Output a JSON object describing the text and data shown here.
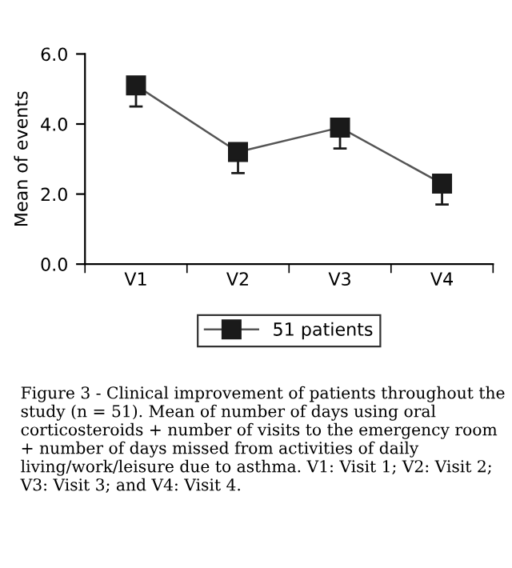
{
  "chart_data": {
    "type": "line",
    "ylabel": "Mean of events",
    "categories": [
      "V1",
      "V2",
      "V3",
      "V4"
    ],
    "series": [
      {
        "name": "51 patients",
        "color": "#1a1a1a",
        "values": [
          5.1,
          3.2,
          3.9,
          2.3
        ],
        "errors": [
          [
            4.5,
            5.1
          ],
          [
            2.6,
            3.2
          ],
          [
            3.3,
            3.9
          ],
          [
            1.7,
            2.3
          ]
        ]
      }
    ],
    "ylim": [
      0,
      6
    ],
    "yticks": [
      {
        "value": 0,
        "label": "0.0"
      },
      {
        "value": 2,
        "label": "2.0"
      },
      {
        "value": 4,
        "label": "4.0"
      },
      {
        "value": 6,
        "label": "6.0"
      }
    ],
    "marker": "square",
    "line_style": "solid",
    "grid": false,
    "legend": "bottom",
    "annotations": [
      "Figure 3 - Clinical improvement of patients throughout the study (n = 51). Mean of number of days using oral corticosteroids + number of visits to the emergency room + number of days missed from activities of daily living/work/leisure due to asthma. V1: Visit 1; V2: Visit 2; V3: Visit 3; and V4: Visit 4."
    ]
  }
}
